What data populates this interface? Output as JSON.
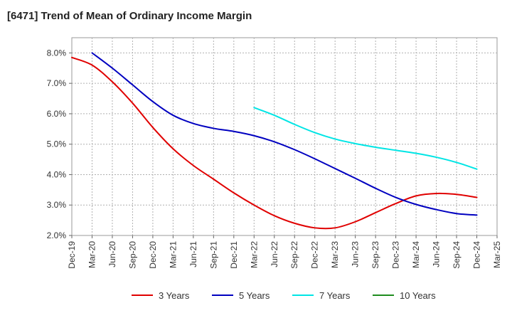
{
  "chart_data": {
    "type": "line",
    "title": "[6471]  Trend of Mean of Ordinary Income Margin",
    "xlabel": "",
    "ylabel": "",
    "x_tick_labels": [
      "Dec-19",
      "Mar-20",
      "Jun-20",
      "Sep-20",
      "Dec-20",
      "Mar-21",
      "Jun-21",
      "Sep-21",
      "Dec-21",
      "Mar-22",
      "Jun-22",
      "Sep-22",
      "Dec-22",
      "Mar-23",
      "Jun-23",
      "Sep-23",
      "Dec-23",
      "Mar-24",
      "Jun-24",
      "Sep-24",
      "Dec-24",
      "Mar-25"
    ],
    "y_tick_labels": [
      "2.0%",
      "3.0%",
      "4.0%",
      "5.0%",
      "6.0%",
      "7.0%",
      "8.0%"
    ],
    "ylim": [
      2.0,
      8.5
    ],
    "y_unit": "%",
    "grid": true,
    "legend_position": "bottom",
    "series": [
      {
        "name": "3 Years",
        "color": "#e00000",
        "points": [
          [
            "Dec-19",
            7.85
          ],
          [
            "Mar-20",
            7.6
          ],
          [
            "Jun-20",
            7.05
          ],
          [
            "Sep-20",
            6.35
          ],
          [
            "Dec-20",
            5.55
          ],
          [
            "Mar-21",
            4.85
          ],
          [
            "Jun-21",
            4.3
          ],
          [
            "Sep-21",
            3.85
          ],
          [
            "Dec-21",
            3.4
          ],
          [
            "Mar-22",
            3.0
          ],
          [
            "Jun-22",
            2.65
          ],
          [
            "Sep-22",
            2.4
          ],
          [
            "Dec-22",
            2.25
          ],
          [
            "Mar-23",
            2.25
          ],
          [
            "Jun-23",
            2.45
          ],
          [
            "Sep-23",
            2.75
          ],
          [
            "Dec-23",
            3.05
          ],
          [
            "Mar-24",
            3.3
          ],
          [
            "Jun-24",
            3.38
          ],
          [
            "Sep-24",
            3.35
          ],
          [
            "Dec-24",
            3.25
          ]
        ]
      },
      {
        "name": "5 Years",
        "color": "#0000c0",
        "points": [
          [
            "Mar-20",
            8.0
          ],
          [
            "Jun-20",
            7.5
          ],
          [
            "Sep-20",
            6.95
          ],
          [
            "Dec-20",
            6.4
          ],
          [
            "Mar-21",
            5.95
          ],
          [
            "Jun-21",
            5.68
          ],
          [
            "Sep-21",
            5.52
          ],
          [
            "Dec-21",
            5.42
          ],
          [
            "Mar-22",
            5.28
          ],
          [
            "Jun-22",
            5.08
          ],
          [
            "Sep-22",
            4.82
          ],
          [
            "Dec-22",
            4.52
          ],
          [
            "Mar-23",
            4.2
          ],
          [
            "Jun-23",
            3.88
          ],
          [
            "Sep-23",
            3.55
          ],
          [
            "Dec-23",
            3.25
          ],
          [
            "Mar-24",
            3.02
          ],
          [
            "Jun-24",
            2.85
          ],
          [
            "Sep-24",
            2.72
          ],
          [
            "Dec-24",
            2.67
          ]
        ]
      },
      {
        "name": "7 Years",
        "color": "#00e5e5",
        "points": [
          [
            "Mar-22",
            6.2
          ],
          [
            "Jun-22",
            5.95
          ],
          [
            "Sep-22",
            5.65
          ],
          [
            "Dec-22",
            5.38
          ],
          [
            "Mar-23",
            5.17
          ],
          [
            "Jun-23",
            5.02
          ],
          [
            "Sep-23",
            4.9
          ],
          [
            "Dec-23",
            4.8
          ],
          [
            "Mar-24",
            4.7
          ],
          [
            "Jun-24",
            4.57
          ],
          [
            "Sep-24",
            4.4
          ],
          [
            "Dec-24",
            4.18
          ]
        ]
      },
      {
        "name": "10 Years",
        "color": "#1e8c1e",
        "points": []
      }
    ]
  }
}
